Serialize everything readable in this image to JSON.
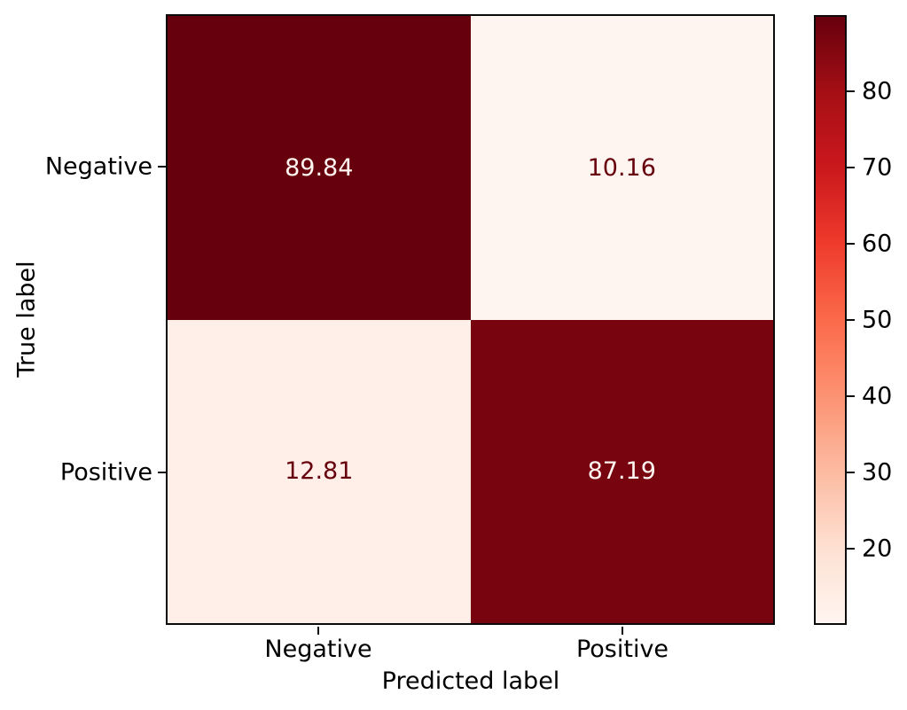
{
  "figure": {
    "background": "#ffffff",
    "axis_color": "#000000"
  },
  "chart_data": {
    "type": "heatmap",
    "title": "",
    "xlabel": "Predicted label",
    "ylabel": "True label",
    "x_ticklabels": [
      "Negative",
      "Positive"
    ],
    "y_ticklabels": [
      "Negative",
      "Positive"
    ],
    "values": [
      [
        89.84,
        10.16
      ],
      [
        12.81,
        87.19
      ]
    ],
    "cell_texts": [
      [
        "89.84",
        "10.16"
      ],
      [
        "12.81",
        "87.19"
      ]
    ],
    "vmin": 10.16,
    "vmax": 89.84,
    "grid": false,
    "colormap": "Reds",
    "colormap_stops": [
      [
        0.0,
        "#fff5f0"
      ],
      [
        0.125,
        "#fee0d2"
      ],
      [
        0.25,
        "#fcbba1"
      ],
      [
        0.375,
        "#fc9272"
      ],
      [
        0.5,
        "#fb6a4a"
      ],
      [
        0.625,
        "#ef3b2c"
      ],
      [
        0.75,
        "#cb181d"
      ],
      [
        0.875,
        "#a50f15"
      ],
      [
        1.0,
        "#67000d"
      ]
    ],
    "cell_text_color_on_dark": "#fff5f0",
    "cell_text_color_on_light": "#67000d",
    "colorbar": {
      "position": "right",
      "ticks": [
        20,
        30,
        40,
        50,
        60,
        70,
        80
      ]
    }
  }
}
